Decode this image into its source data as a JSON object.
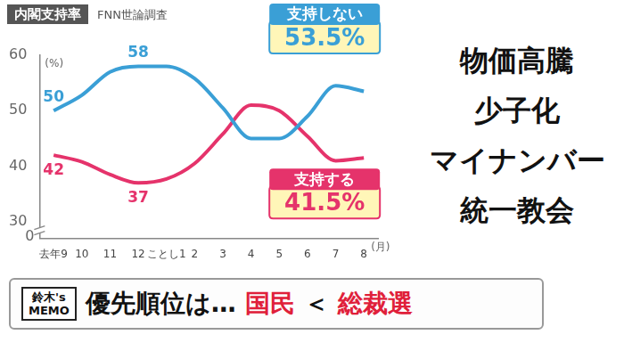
{
  "chart_data": {
    "type": "line",
    "title": "内閣支持率",
    "subtitle": "FNN世論調査",
    "categories": [
      "去年9",
      "10",
      "11",
      "12",
      "ことし1",
      "2",
      "3",
      "4",
      "5",
      "6",
      "7",
      "8"
    ],
    "x_label": "(月)",
    "y_label": "(%)",
    "series": [
      {
        "name": "支持しない",
        "color": "#3a9fd6",
        "values": [
          50,
          52.8,
          57,
          58,
          58,
          55.8,
          50.5,
          45,
          45,
          49,
          54.5,
          53.5
        ],
        "value_labels": [
          "50",
          null,
          null,
          "58",
          null,
          null,
          null,
          null,
          null,
          null,
          null,
          "53.5%"
        ]
      },
      {
        "name": "支持する",
        "color": "#e5336b",
        "values": [
          42,
          40.8,
          38.5,
          37,
          37.7,
          40.5,
          45.8,
          51,
          50,
          45.4,
          41,
          41.5
        ],
        "value_labels": [
          "42",
          null,
          null,
          "37",
          null,
          null,
          null,
          null,
          null,
          null,
          null,
          "41.5%"
        ]
      }
    ],
    "ylim": [
      27,
      60
    ],
    "yticks": [
      30,
      40,
      50,
      60
    ],
    "y_break_label": "0",
    "grid": false,
    "data_labels": true,
    "annotations": [
      "物価高騰",
      "少子化",
      "マイナンバー",
      "統一教会"
    ]
  },
  "memo": {
    "tag": "鈴木's MEMO",
    "text": "優先順位は…",
    "compare": [
      "国民",
      "＜",
      "総裁選"
    ]
  }
}
